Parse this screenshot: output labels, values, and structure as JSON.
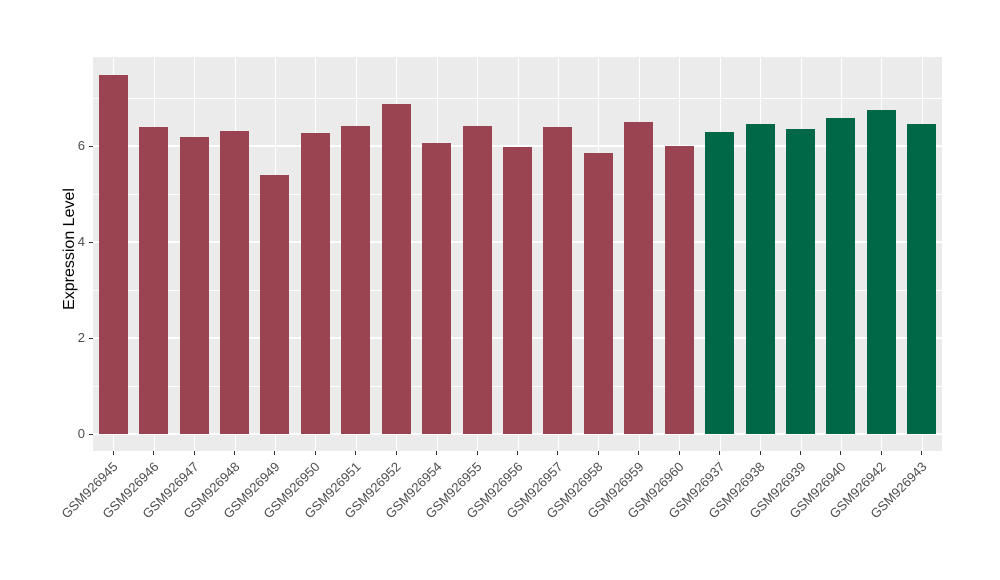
{
  "chart_data": {
    "type": "bar",
    "title": "",
    "xlabel": "",
    "ylabel": "Expression Level",
    "ylim": [
      0,
      7.5
    ],
    "y_major_ticks": [
      0,
      2,
      4,
      6
    ],
    "y_minor_ticks": [
      1,
      3,
      5,
      7
    ],
    "x_tick_label_angle": 45,
    "grid": true,
    "legend_position": "none",
    "categories": [
      "GSM926945",
      "GSM926946",
      "GSM926947",
      "GSM926948",
      "GSM926949",
      "GSM926950",
      "GSM926951",
      "GSM926952",
      "GSM926954",
      "GSM926955",
      "GSM926956",
      "GSM926957",
      "GSM926958",
      "GSM926959",
      "GSM926960",
      "GSM926937",
      "GSM926938",
      "GSM926939",
      "GSM926940",
      "GSM926942",
      "GSM926943"
    ],
    "values": [
      7.48,
      6.4,
      6.19,
      6.31,
      5.4,
      6.27,
      6.42,
      6.88,
      6.06,
      6.42,
      5.98,
      6.4,
      5.85,
      6.5,
      6.0,
      6.29,
      6.46,
      6.35,
      6.58,
      6.75,
      6.46
    ],
    "bar_groups": [
      "group_a",
      "group_a",
      "group_a",
      "group_a",
      "group_a",
      "group_a",
      "group_a",
      "group_a",
      "group_a",
      "group_a",
      "group_a",
      "group_a",
      "group_a",
      "group_a",
      "group_a",
      "group_b",
      "group_b",
      "group_b",
      "group_b",
      "group_b",
      "group_b"
    ],
    "palette": {
      "group_a": "#9A4452",
      "group_b": "#016847"
    },
    "colors": {
      "page_background": "#FFFFFF",
      "panel_background": "#EBEBEB",
      "gridline": "#FFFFFF",
      "tick_label": "#4D4D4D",
      "axis_title": "#000000",
      "tick_mark": "#333333"
    }
  }
}
